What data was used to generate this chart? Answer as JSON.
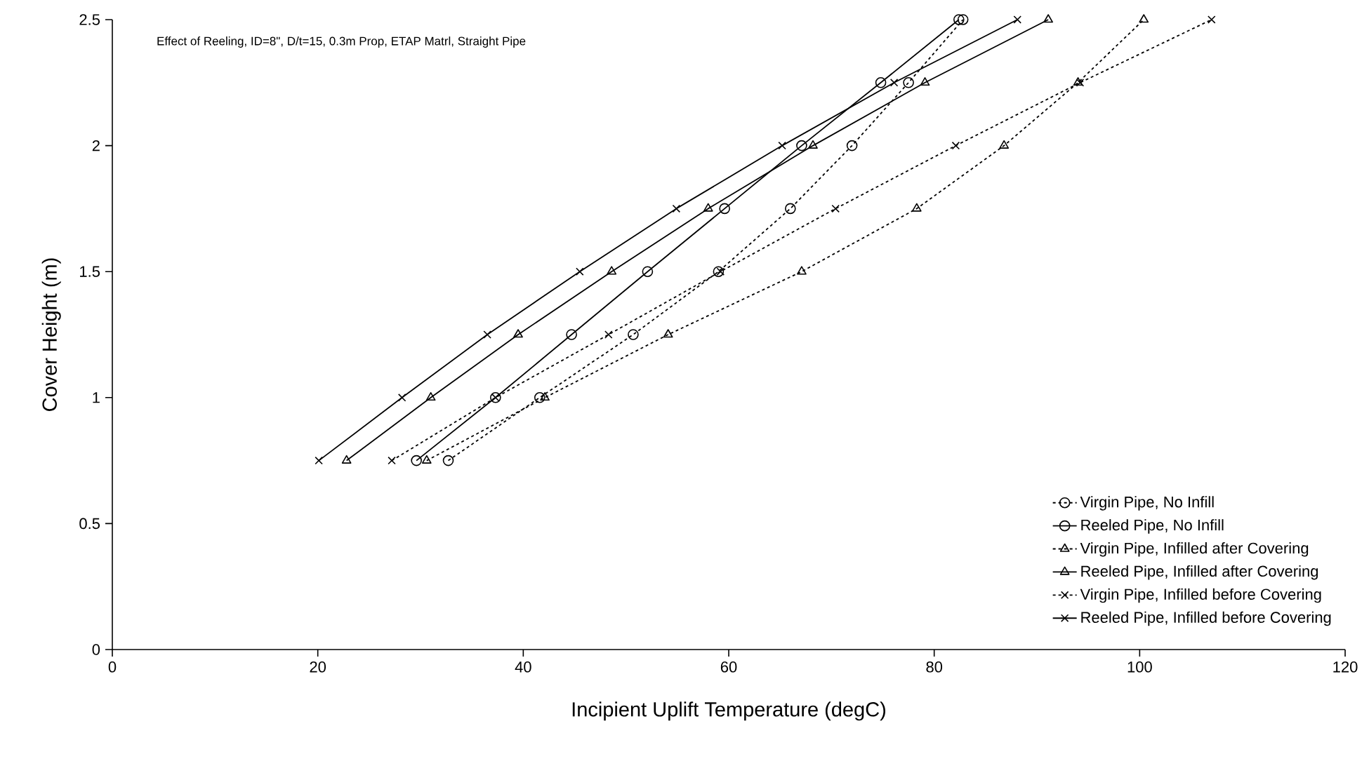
{
  "chart_data": {
    "type": "line",
    "xlabel": "Incipient Uplift Temperature (degC)",
    "ylabel": "Cover Height (m)",
    "annotations": [
      "Effect of Reeling, ID=8\",  D/t=15, 0.3m Prop, ETAP Matrl, Straight Pipe"
    ],
    "xlim": [
      0,
      120
    ],
    "ylim": [
      0,
      2.5
    ],
    "xticks": [
      0,
      20,
      40,
      60,
      80,
      100,
      120
    ],
    "yticks": [
      0,
      0.5,
      1,
      1.5,
      2,
      2.5
    ],
    "grid": false,
    "legend": "bottom right",
    "series": [
      {
        "name": "Virgin Pipe, No Infill",
        "color": "#000000",
        "marker": "circle",
        "line_style": "dotted",
        "x": [
          32.7,
          41.6,
          50.7,
          59,
          66.0,
          72.0,
          77.5,
          82.8
        ],
        "values": [
          0.75,
          1,
          1.25,
          1.5,
          1.75,
          2,
          2.25,
          2.5
        ]
      },
      {
        "name": "Reeled Pipe, No Infill",
        "color": "#000000",
        "marker": "circle",
        "line_style": "solid",
        "x": [
          29.6,
          37.3,
          44.7,
          52.1,
          59.6,
          67.1,
          74.8,
          82.4
        ],
        "values": [
          0.75,
          1,
          1.25,
          1.5,
          1.75,
          2,
          2.25,
          2.5
        ]
      },
      {
        "name": "Virgin Pipe, Infilled after Covering",
        "color": "#000000",
        "marker": "triangle",
        "line_style": "dotted",
        "x": [
          30.6,
          42.1,
          54.1,
          67.1,
          78.3,
          86.8,
          94.0,
          100.4
        ],
        "values": [
          0.75,
          1,
          1.25,
          1.5,
          1.75,
          2,
          2.25,
          2.5
        ]
      },
      {
        "name": "Reeled Pipe, Infilled after Covering",
        "color": "#000000",
        "marker": "triangle",
        "line_style": "solid",
        "x": [
          22.8,
          31.0,
          39.5,
          48.6,
          58.0,
          68.2,
          79.1,
          91.1
        ],
        "values": [
          0.75,
          1,
          1.25,
          1.5,
          1.75,
          2,
          2.25,
          2.5
        ]
      },
      {
        "name": "Virgin Pipe, Infilled before Covering",
        "color": "#000000",
        "marker": "cross",
        "line_style": "dotted",
        "x": [
          27.2,
          37.3,
          48.3,
          59.2,
          70.4,
          82.1,
          94.2,
          107.0
        ],
        "values": [
          0.75,
          1,
          1.25,
          1.5,
          1.75,
          2,
          2.25,
          2.5
        ]
      },
      {
        "name": "Reeled Pipe, Infilled before Covering",
        "color": "#000000",
        "marker": "cross",
        "line_style": "solid",
        "x": [
          20.1,
          28.2,
          36.5,
          45.5,
          54.9,
          65.2,
          76.1,
          88.1
        ],
        "values": [
          0.75,
          1,
          1.25,
          1.5,
          1.75,
          2,
          2.25,
          2.5
        ]
      }
    ]
  }
}
